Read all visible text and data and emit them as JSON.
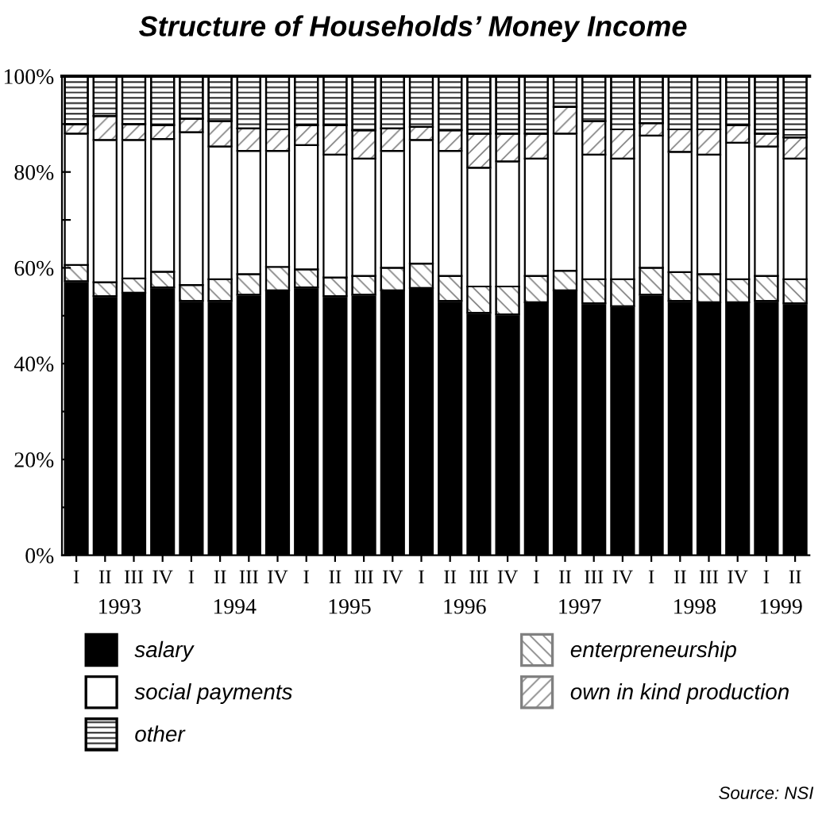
{
  "chart_data": {
    "type": "bar",
    "title": "Structure of Households’ Money Income",
    "categories": [
      "I",
      "II",
      "III",
      "IV",
      "I",
      "II",
      "III",
      "IV",
      "I",
      "II",
      "III",
      "IV",
      "I",
      "II",
      "III",
      "IV",
      "I",
      "II",
      "III",
      "IV",
      "I",
      "II",
      "III",
      "IV",
      "I",
      "II"
    ],
    "stacked": true,
    "series": [
      {
        "name": "salary",
        "color": "#000000",
        "values": [
          57.2,
          54.1,
          54.8,
          55.9,
          53.1,
          53.1,
          54.4,
          55.3,
          55.9,
          54.1,
          54.4,
          55.3,
          55.8,
          53.1,
          50.6,
          50.3,
          52.8,
          55.3,
          52.6,
          52.0,
          54.4,
          53.1,
          52.8,
          52.8,
          53.1,
          52.6
        ]
      },
      {
        "name": "enterpreneurship",
        "color": "#808080",
        "values": [
          3.4,
          2.9,
          3.0,
          3.3,
          3.3,
          4.5,
          4.3,
          4.9,
          3.8,
          3.9,
          3.9,
          4.7,
          5.1,
          5.2,
          5.5,
          5.8,
          5.5,
          4.1,
          5.0,
          5.6,
          5.6,
          6.0,
          5.9,
          4.8,
          5.2,
          5.0
        ]
      },
      {
        "name": "social payments",
        "color": "#ffffff",
        "values": [
          27.4,
          29.7,
          28.9,
          27.7,
          31.9,
          27.7,
          25.7,
          24.2,
          25.9,
          25.6,
          24.5,
          24.4,
          25.8,
          26.1,
          24.8,
          26.1,
          24.5,
          28.6,
          26.0,
          25.2,
          27.6,
          25.1,
          24.9,
          28.5,
          27.0,
          25.2
        ]
      },
      {
        "name": "own in kind production",
        "color": "#808080",
        "values": [
          2.0,
          5.0,
          3.3,
          2.9,
          2.8,
          5.3,
          4.7,
          4.5,
          4.2,
          6.2,
          5.9,
          4.7,
          2.7,
          4.3,
          7.1,
          5.8,
          5.2,
          5.6,
          7.0,
          6.1,
          2.6,
          4.7,
          5.3,
          3.7,
          2.7,
          4.4
        ]
      },
      {
        "name": "other",
        "color": "#000000",
        "values": [
          10.0,
          8.3,
          10.0,
          10.2,
          8.9,
          9.4,
          10.9,
          11.1,
          10.2,
          10.2,
          11.3,
          10.9,
          10.6,
          11.3,
          12.0,
          12.0,
          12.0,
          6.4,
          9.4,
          11.1,
          9.8,
          11.1,
          11.1,
          10.2,
          12.0,
          12.8
        ]
      }
    ],
    "ylim": [
      0,
      100
    ],
    "yticks": [
      {
        "value": 0,
        "label": "0%"
      },
      {
        "value": 10,
        "label": null
      },
      {
        "value": 20,
        "label": "20%"
      },
      {
        "value": 30,
        "label": null
      },
      {
        "value": 40,
        "label": "40%"
      },
      {
        "value": 50,
        "label": null
      },
      {
        "value": 60,
        "label": "60%"
      },
      {
        "value": 70,
        "label": null
      },
      {
        "value": 80,
        "label": "80%"
      },
      {
        "value": 90,
        "label": null
      },
      {
        "value": 100,
        "label": "100%"
      }
    ],
    "grid": false,
    "legend": "bottom",
    "annotations": [
      "1993",
      "1994",
      "1995",
      "1996",
      "1997",
      "1998",
      "1999",
      "Source: NSI"
    ]
  }
}
